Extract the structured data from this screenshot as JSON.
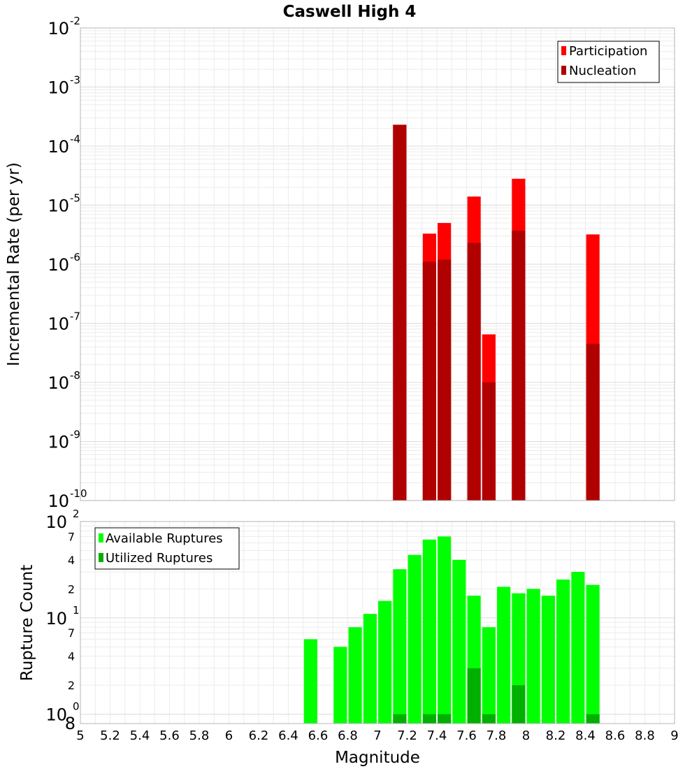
{
  "title": "Caswell High 4",
  "chart_data": [
    {
      "type": "bar",
      "ylabel": "Incremental Rate (per yr)",
      "xlabel": "",
      "yscale": "log",
      "ylim": [
        1e-10,
        0.01
      ],
      "y_ticks": [
        {
          "base": "10",
          "exp": "-10"
        },
        {
          "base": "10",
          "exp": "-9"
        },
        {
          "base": "10",
          "exp": "-8"
        },
        {
          "base": "10",
          "exp": "-7"
        },
        {
          "base": "10",
          "exp": "-6"
        },
        {
          "base": "10",
          "exp": "-5"
        },
        {
          "base": "10",
          "exp": "-4"
        },
        {
          "base": "10",
          "exp": "-3"
        },
        {
          "base": "10",
          "exp": "-2"
        }
      ],
      "legend_position": "top-right",
      "series": [
        {
          "name": "Participation",
          "color": "#ff0000",
          "x": [
            7.15,
            7.35,
            7.45,
            7.65,
            7.75,
            7.95,
            8.45
          ],
          "values": [
            0.00023,
            3.3e-06,
            5e-06,
            1.4e-05,
            6.5e-08,
            2.8e-05,
            3.2e-06
          ]
        },
        {
          "name": "Nucleation",
          "color": "#b00000",
          "x": [
            7.15,
            7.35,
            7.45,
            7.65,
            7.75,
            7.95,
            8.45
          ],
          "values": [
            0.00023,
            1.1e-06,
            1.2e-06,
            2.3e-06,
            1e-08,
            3.7e-06,
            4.5e-08
          ]
        }
      ]
    },
    {
      "type": "bar",
      "ylabel": "Rupture Count",
      "xlabel": "Magnitude",
      "yscale": "log",
      "ylim": [
        0.8,
        100
      ],
      "y_ticks": [
        {
          "value": 1,
          "base": "10",
          "exp": "0"
        },
        {
          "value": 2,
          "label": "2"
        },
        {
          "value": 4,
          "label": "4"
        },
        {
          "value": 7,
          "label": "7"
        },
        {
          "value": 10,
          "base": "10",
          "exp": "1"
        },
        {
          "value": 20,
          "label": "2"
        },
        {
          "value": 40,
          "label": "4"
        },
        {
          "value": 70,
          "label": "7"
        },
        {
          "value": 100,
          "base": "10",
          "exp": "2"
        }
      ],
      "ymin_label": "8",
      "legend_position": "top-left",
      "x_ticks": [
        "5",
        "5.2",
        "5.4",
        "5.6",
        "5.8",
        "6",
        "6.2",
        "6.4",
        "6.6",
        "6.8",
        "7",
        "7.2",
        "7.4",
        "7.6",
        "7.8",
        "8",
        "8.2",
        "8.4",
        "8.6",
        "8.8",
        "9"
      ],
      "xlim": [
        5,
        9
      ],
      "series": [
        {
          "name": "Available Ruptures",
          "color": "#00ff00",
          "x": [
            6.55,
            6.75,
            6.85,
            6.95,
            7.05,
            7.15,
            7.25,
            7.35,
            7.45,
            7.55,
            7.65,
            7.75,
            7.85,
            7.95,
            8.05,
            8.15,
            8.25,
            8.35,
            8.45
          ],
          "values": [
            6,
            5,
            8,
            11,
            15,
            32,
            45,
            65,
            70,
            40,
            17,
            8,
            21,
            18,
            20,
            17,
            25,
            30,
            22
          ]
        },
        {
          "name": "Utilized Ruptures",
          "color": "#00b000",
          "x": [
            7.15,
            7.35,
            7.45,
            7.65,
            7.75,
            7.95,
            8.45
          ],
          "values": [
            1,
            1,
            1,
            3,
            1,
            2,
            1
          ]
        }
      ]
    }
  ]
}
